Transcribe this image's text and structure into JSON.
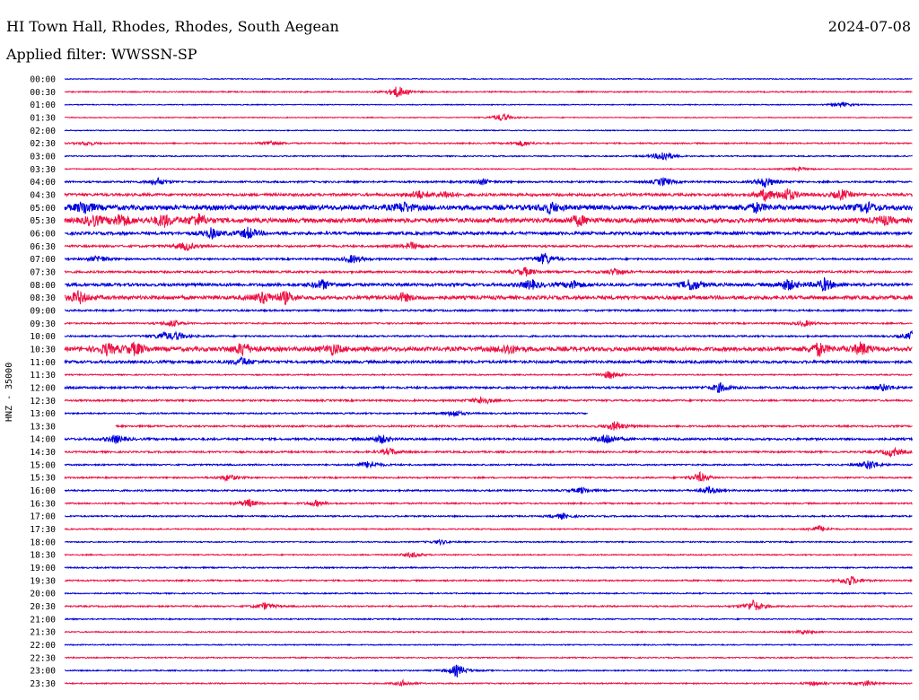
{
  "header": {
    "station": "HI Town Hall, Rhodes, Rhodes, South Aegean",
    "date": "2024-07-08",
    "filter": "Applied filter: WWSSN-SP"
  },
  "channel_label": "HNZ - 35000",
  "colors": {
    "trace_a": "#0000dd",
    "trace_b": "#ee1144",
    "background": "#ffffff",
    "text": "#000000"
  },
  "chart_data": {
    "type": "line",
    "title": "",
    "ylabel": "HNZ - 35000",
    "row_labels": [
      "00:00",
      "00:30",
      "01:00",
      "01:30",
      "02:00",
      "02:30",
      "03:00",
      "03:30",
      "04:00",
      "04:30",
      "05:00",
      "05:30",
      "06:00",
      "06:30",
      "07:00",
      "07:30",
      "08:00",
      "08:30",
      "09:00",
      "09:30",
      "10:00",
      "10:30",
      "11:00",
      "11:30",
      "12:00",
      "12:30",
      "13:00",
      "13:30",
      "14:00",
      "14:30",
      "15:00",
      "15:30",
      "16:00",
      "16:30",
      "17:00",
      "17:30",
      "18:00",
      "18:30",
      "19:00",
      "19:30",
      "20:00",
      "20:30",
      "21:00",
      "21:30",
      "22:00",
      "22:30",
      "23:00",
      "23:30"
    ],
    "row_minutes": 30,
    "color_cycle": [
      "trace_a",
      "trace_b"
    ],
    "row_noise": [
      0.6,
      0.8,
      0.6,
      0.6,
      0.6,
      0.9,
      0.8,
      0.7,
      1.2,
      1.8,
      3.2,
      3.0,
      2.0,
      1.4,
      1.2,
      1.4,
      2.0,
      2.4,
      1.2,
      1.0,
      1.1,
      2.8,
      1.8,
      0.8,
      1.4,
      1.2,
      1.0,
      1.2,
      1.4,
      1.2,
      1.0,
      1.0,
      1.1,
      1.0,
      1.0,
      0.8,
      0.8,
      0.8,
      0.9,
      1.0,
      0.8,
      1.0,
      0.8,
      0.8,
      0.7,
      0.8,
      0.8,
      0.8
    ],
    "data_gaps": [
      {
        "row": 26,
        "from_min": 18.5,
        "to_min": 30
      },
      {
        "row": 27,
        "from_min": 0,
        "to_min": 1.8
      }
    ],
    "events": [
      {
        "row": 1,
        "min": 11.8,
        "amp": 9
      },
      {
        "row": 2,
        "min": 27.5,
        "amp": 4
      },
      {
        "row": 3,
        "min": 15.5,
        "amp": 6
      },
      {
        "row": 5,
        "min": 7.3,
        "amp": 4
      },
      {
        "row": 5,
        "min": 16.2,
        "amp": 4
      },
      {
        "row": 5,
        "min": 0.8,
        "amp": 3
      },
      {
        "row": 6,
        "min": 21.2,
        "amp": 8
      },
      {
        "row": 7,
        "min": 26.0,
        "amp": 3
      },
      {
        "row": 8,
        "min": 3.3,
        "amp": 5
      },
      {
        "row": 8,
        "min": 14.8,
        "amp": 4
      },
      {
        "row": 8,
        "min": 21.2,
        "amp": 6
      },
      {
        "row": 8,
        "min": 24.8,
        "amp": 8
      },
      {
        "row": 9,
        "min": 12.5,
        "amp": 6
      },
      {
        "row": 9,
        "min": 13.5,
        "amp": 5
      },
      {
        "row": 9,
        "min": 24.8,
        "amp": 8
      },
      {
        "row": 9,
        "min": 25.6,
        "amp": 9
      },
      {
        "row": 9,
        "min": 27.5,
        "amp": 7
      },
      {
        "row": 10,
        "min": 0.7,
        "amp": 9
      },
      {
        "row": 10,
        "min": 12.0,
        "amp": 7
      },
      {
        "row": 10,
        "min": 17.2,
        "amp": 7
      },
      {
        "row": 10,
        "min": 24.5,
        "amp": 6
      },
      {
        "row": 10,
        "min": 28.4,
        "amp": 7
      },
      {
        "row": 11,
        "min": 1.0,
        "amp": 8
      },
      {
        "row": 11,
        "min": 2.0,
        "amp": 9
      },
      {
        "row": 11,
        "min": 3.5,
        "amp": 9
      },
      {
        "row": 11,
        "min": 4.7,
        "amp": 9
      },
      {
        "row": 11,
        "min": 18.2,
        "amp": 7
      },
      {
        "row": 11,
        "min": 29.0,
        "amp": 6
      },
      {
        "row": 12,
        "min": 5.2,
        "amp": 7
      },
      {
        "row": 12,
        "min": 6.5,
        "amp": 8
      },
      {
        "row": 13,
        "min": 4.3,
        "amp": 6
      },
      {
        "row": 13,
        "min": 12.3,
        "amp": 5
      },
      {
        "row": 14,
        "min": 1.2,
        "amp": 5
      },
      {
        "row": 14,
        "min": 10.2,
        "amp": 6
      },
      {
        "row": 14,
        "min": 17.0,
        "amp": 9
      },
      {
        "row": 15,
        "min": 16.3,
        "amp": 6
      },
      {
        "row": 15,
        "min": 19.5,
        "amp": 5
      },
      {
        "row": 16,
        "min": 9.1,
        "amp": 7
      },
      {
        "row": 16,
        "min": 16.5,
        "amp": 7
      },
      {
        "row": 16,
        "min": 18.0,
        "amp": 6
      },
      {
        "row": 16,
        "min": 22.2,
        "amp": 9
      },
      {
        "row": 16,
        "min": 25.6,
        "amp": 8
      },
      {
        "row": 16,
        "min": 26.9,
        "amp": 9
      },
      {
        "row": 17,
        "min": 0.5,
        "amp": 9
      },
      {
        "row": 17,
        "min": 7.0,
        "amp": 8
      },
      {
        "row": 17,
        "min": 7.8,
        "amp": 8
      },
      {
        "row": 17,
        "min": 12.0,
        "amp": 6
      },
      {
        "row": 19,
        "min": 3.8,
        "amp": 5
      },
      {
        "row": 19,
        "min": 26.2,
        "amp": 4
      },
      {
        "row": 20,
        "min": 3.5,
        "amp": 5
      },
      {
        "row": 20,
        "min": 4.0,
        "amp": 5
      },
      {
        "row": 20,
        "min": 30.0,
        "amp": 6
      },
      {
        "row": 21,
        "min": 1.5,
        "amp": 8
      },
      {
        "row": 21,
        "min": 2.5,
        "amp": 9
      },
      {
        "row": 21,
        "min": 6.3,
        "amp": 9
      },
      {
        "row": 21,
        "min": 9.5,
        "amp": 7
      },
      {
        "row": 21,
        "min": 15.7,
        "amp": 7
      },
      {
        "row": 21,
        "min": 26.7,
        "amp": 9
      },
      {
        "row": 21,
        "min": 28.2,
        "amp": 9
      },
      {
        "row": 22,
        "min": 6.3,
        "amp": 6
      },
      {
        "row": 23,
        "min": 19.3,
        "amp": 6
      },
      {
        "row": 24,
        "min": 23.2,
        "amp": 7
      },
      {
        "row": 24,
        "min": 29.0,
        "amp": 5
      },
      {
        "row": 25,
        "min": 14.8,
        "amp": 6
      },
      {
        "row": 26,
        "min": 13.8,
        "amp": 5
      },
      {
        "row": 27,
        "min": 19.5,
        "amp": 7
      },
      {
        "row": 28,
        "min": 1.8,
        "amp": 6
      },
      {
        "row": 28,
        "min": 11.2,
        "amp": 6
      },
      {
        "row": 28,
        "min": 19.2,
        "amp": 8
      },
      {
        "row": 29,
        "min": 11.5,
        "amp": 5
      },
      {
        "row": 29,
        "min": 29.3,
        "amp": 7
      },
      {
        "row": 30,
        "min": 10.8,
        "amp": 6
      },
      {
        "row": 30,
        "min": 28.5,
        "amp": 7
      },
      {
        "row": 31,
        "min": 5.8,
        "amp": 5
      },
      {
        "row": 31,
        "min": 22.5,
        "amp": 7
      },
      {
        "row": 32,
        "min": 18.3,
        "amp": 4
      },
      {
        "row": 32,
        "min": 22.8,
        "amp": 5
      },
      {
        "row": 33,
        "min": 6.5,
        "amp": 6
      },
      {
        "row": 33,
        "min": 8.9,
        "amp": 4
      },
      {
        "row": 34,
        "min": 17.6,
        "amp": 4
      },
      {
        "row": 35,
        "min": 26.7,
        "amp": 5
      },
      {
        "row": 36,
        "min": 13.3,
        "amp": 3
      },
      {
        "row": 37,
        "min": 12.3,
        "amp": 4
      },
      {
        "row": 39,
        "min": 27.8,
        "amp": 7
      },
      {
        "row": 41,
        "min": 7.1,
        "amp": 5
      },
      {
        "row": 41,
        "min": 24.4,
        "amp": 9
      },
      {
        "row": 43,
        "min": 26.2,
        "amp": 3
      },
      {
        "row": 46,
        "min": 13.9,
        "amp": 9
      },
      {
        "row": 47,
        "min": 12.0,
        "amp": 4
      },
      {
        "row": 47,
        "min": 28.4,
        "amp": 4
      },
      {
        "row": 47,
        "min": 26.5,
        "amp": 3
      }
    ]
  }
}
